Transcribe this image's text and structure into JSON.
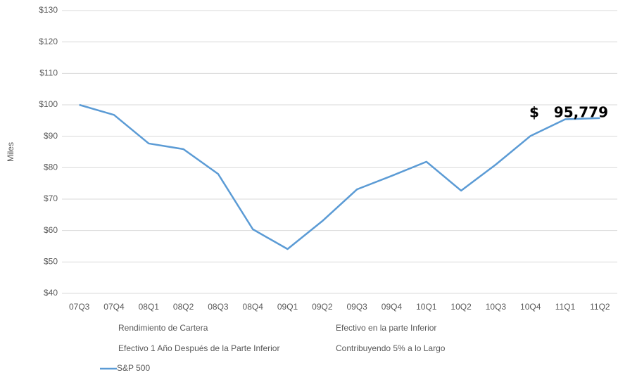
{
  "chart_data": {
    "type": "line",
    "y_label": "Miles",
    "categories": [
      "07Q3",
      "07Q4",
      "08Q1",
      "08Q2",
      "08Q3",
      "08Q4",
      "09Q1",
      "09Q2",
      "09Q3",
      "09Q4",
      "10Q1",
      "10Q2",
      "10Q3",
      "10Q4",
      "11Q1",
      "11Q2"
    ],
    "series": [
      {
        "name": "S&P 500",
        "color": "#5b9bd5",
        "values": [
          100,
          96.8,
          87.7,
          85.9,
          78,
          60.4,
          54.1,
          63,
          73.1,
          77.4,
          81.9,
          72.7,
          81,
          90.1,
          95.4,
          95.779
        ]
      }
    ],
    "other_legend_entries": [
      "Rendimiento de Cartera",
      "Efectivo en la parte Inferior",
      "Efectivo 1 Año Después de la Parte Inferior",
      "Contribuyendo 5% a lo Largo"
    ],
    "annotation": "$   95,779",
    "ylim": [
      40,
      130
    ],
    "yticks": [
      {
        "value": 40,
        "label": "$40"
      },
      {
        "value": 50,
        "label": "$50"
      },
      {
        "value": 60,
        "label": "$60"
      },
      {
        "value": 70,
        "label": "$70"
      },
      {
        "value": 80,
        "label": "$80"
      },
      {
        "value": 90,
        "label": "$90"
      },
      {
        "value": 100,
        "label": "$100"
      },
      {
        "value": 110,
        "label": "$110"
      },
      {
        "value": 120,
        "label": "$120"
      },
      {
        "value": 130,
        "label": "$130"
      }
    ],
    "grid": true
  }
}
